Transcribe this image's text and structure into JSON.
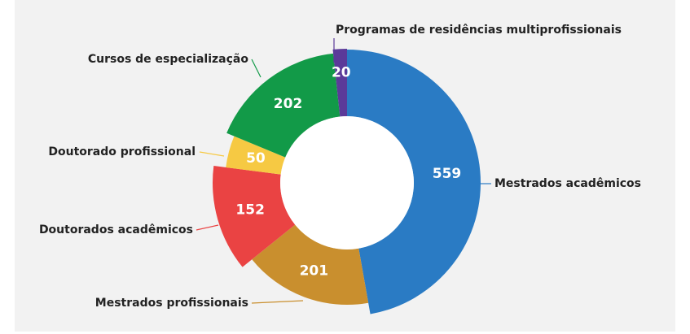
{
  "chart_data": {
    "type": "donut",
    "categories": [
      "Mestrados acadêmicos",
      "Mestrados profissionais",
      "Doutorados acadêmicos",
      "Doutorado profissional",
      "Cursos de especialização",
      "Programas de residências multiprofissionais"
    ],
    "values": [
      559,
      201,
      152,
      50,
      202,
      20
    ],
    "colors": [
      "#2a7bc4",
      "#c98f2e",
      "#ea4343",
      "#f6c943",
      "#129a48",
      "#5b3a99"
    ]
  }
}
